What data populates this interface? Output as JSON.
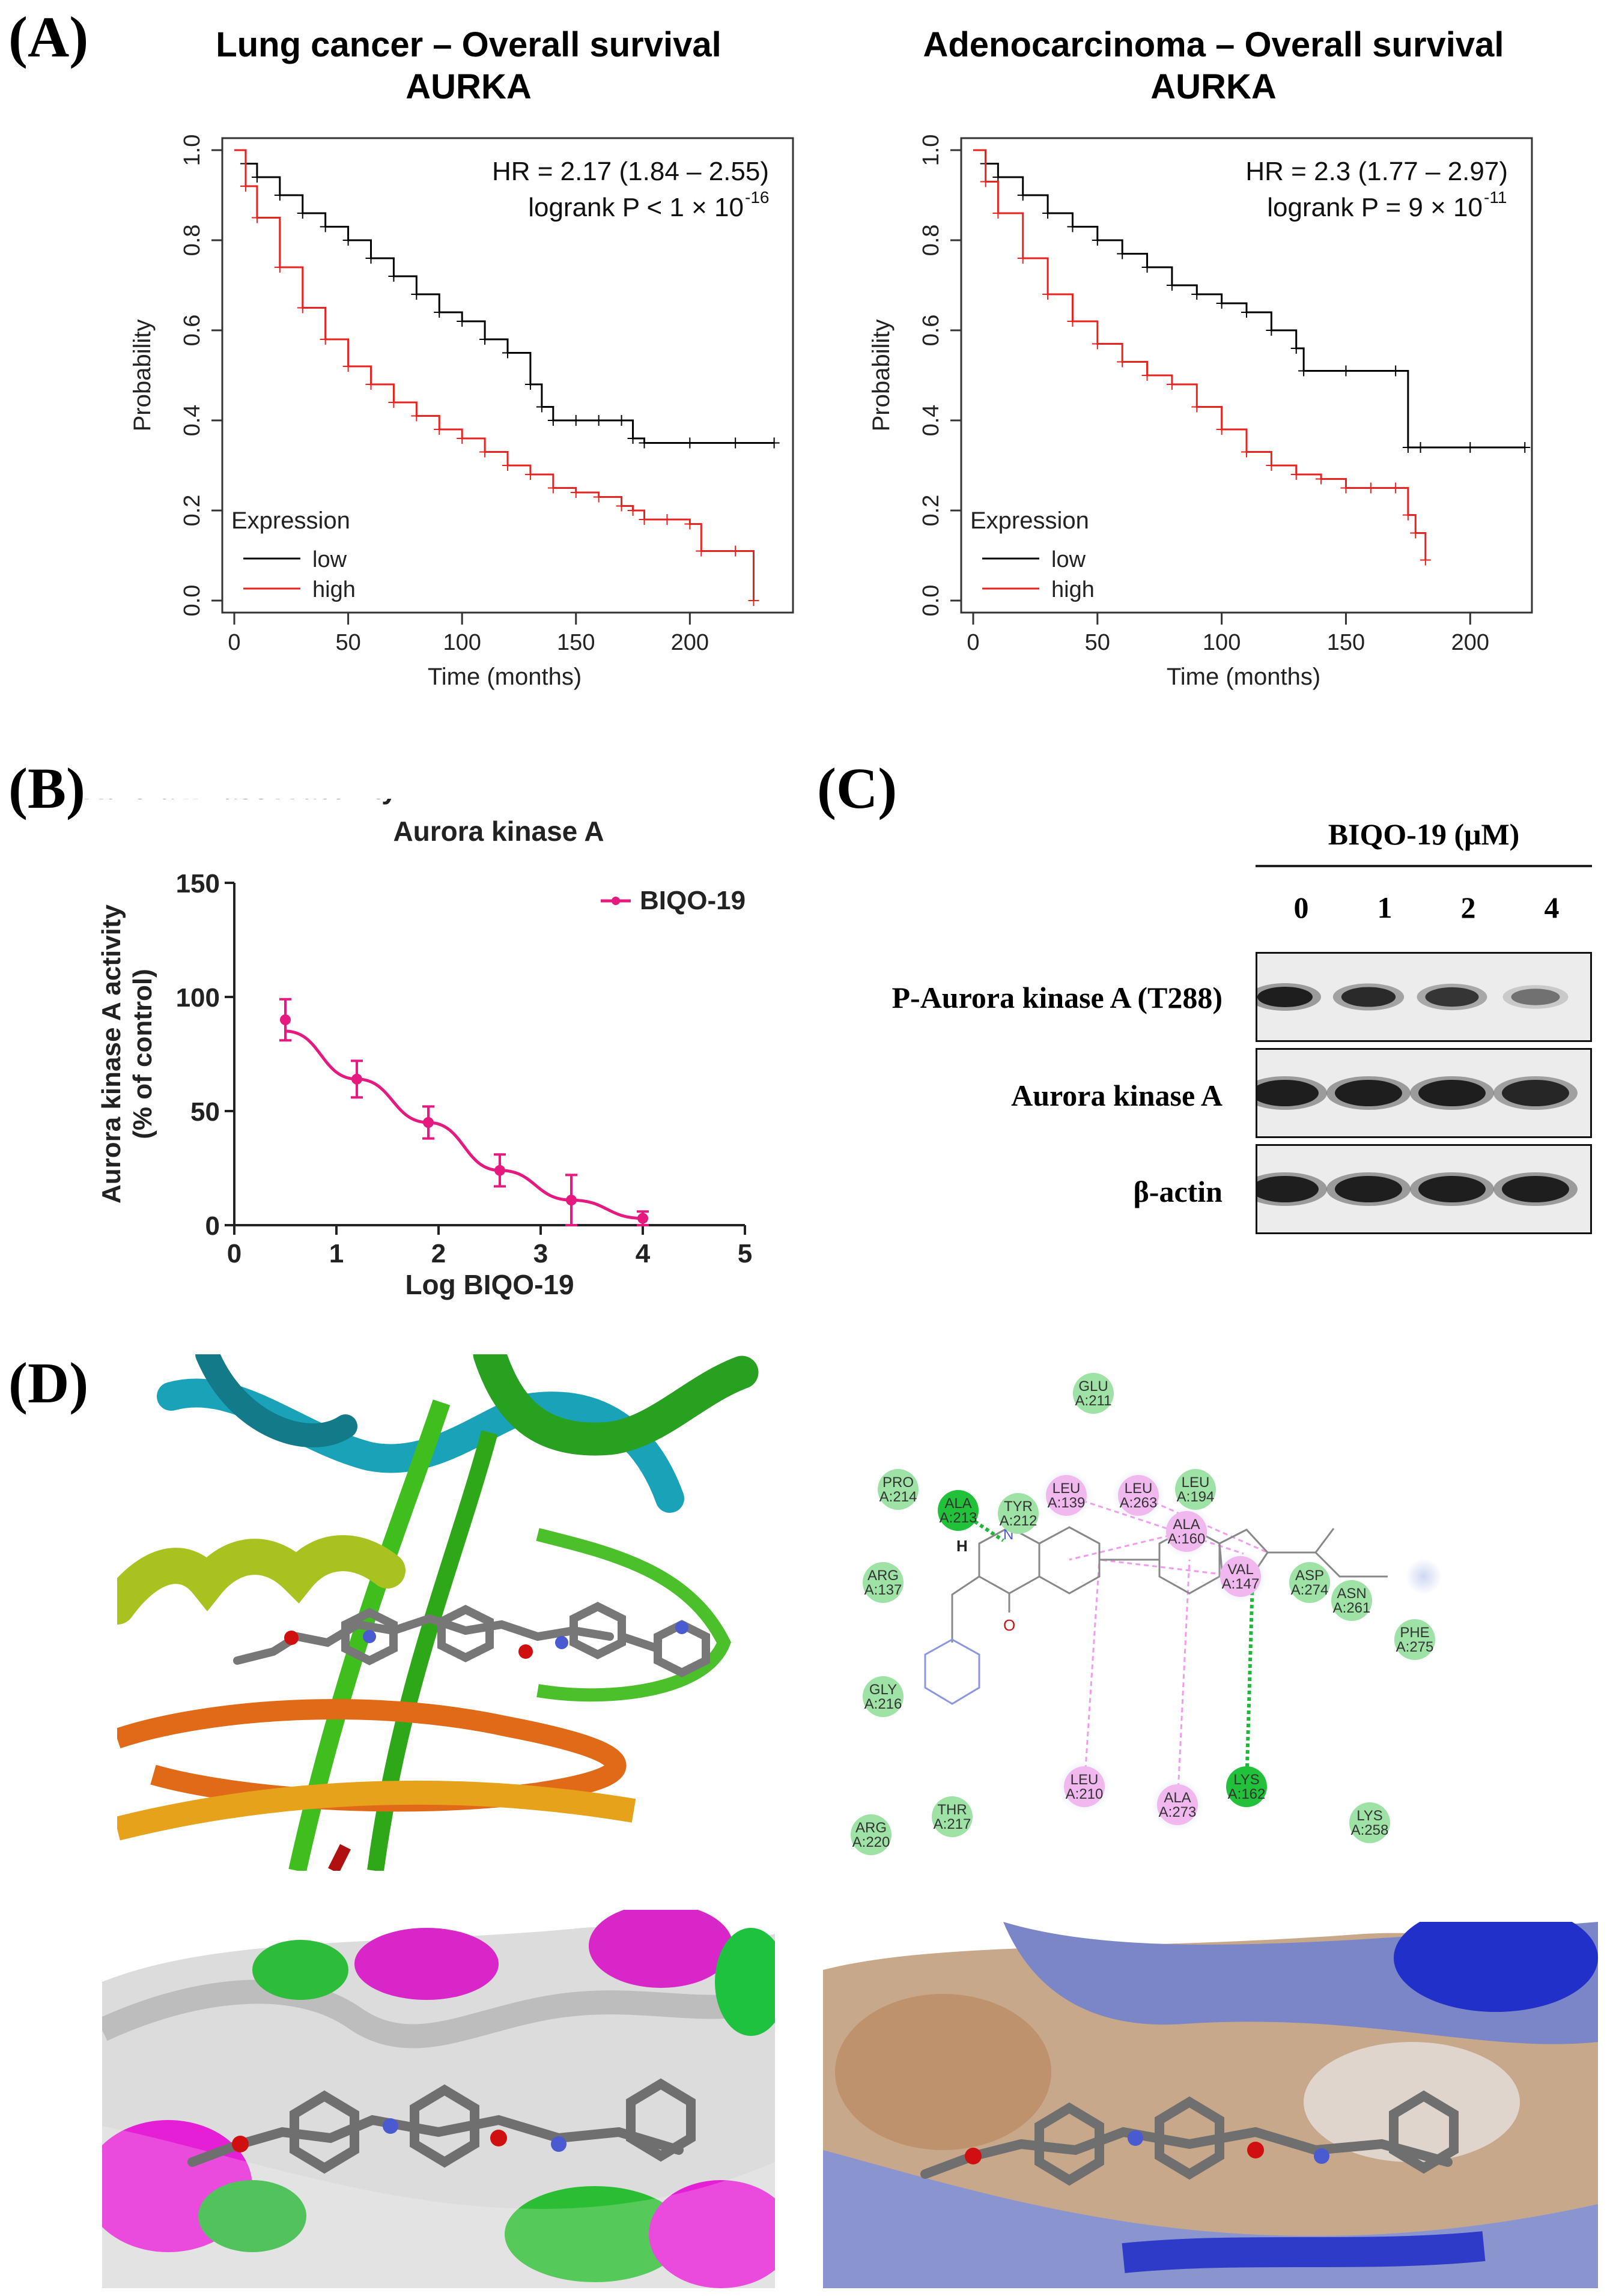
{
  "panels": {
    "A": "(A)",
    "B": "(B)",
    "C": "(C)",
    "D": "(D)"
  },
  "km_left": {
    "title_line1": "Lung cancer – Overall survival",
    "title_line2": "AURKA",
    "hr_text": "HR = 2.17 (1.84 – 2.55)",
    "logrank_text": "logrank P < 1 × 10",
    "logrank_exp": "-16",
    "ylabel": "Probability",
    "xlabel": "Time (months)",
    "legend_title": "Expression",
    "legend_low": "low",
    "legend_high": "high",
    "xticks": [
      "0",
      "50",
      "100",
      "150",
      "200"
    ],
    "yticks": [
      "0.0",
      "0.2",
      "0.4",
      "0.6",
      "0.8",
      "1.0"
    ]
  },
  "km_right": {
    "title_line1": "Adenocarcinoma – Overall survival",
    "title_line2": "AURKA",
    "hr_text": "HR = 2.3 (1.77 – 2.97)",
    "logrank_text": "logrank P = 9 × 10",
    "logrank_exp": "-11",
    "ylabel": "Probability",
    "xlabel": "Time (months)",
    "legend_title": "Expression",
    "legend_low": "low",
    "legend_high": "high",
    "xticks": [
      "0",
      "50",
      "100",
      "150",
      "200"
    ],
    "yticks": [
      "0.0",
      "0.2",
      "0.4",
      "0.6",
      "0.8",
      "1.0"
    ]
  },
  "panel_b": {
    "title": "Aurora kinase A",
    "ylabel_line1": "Aurora kinase A activity",
    "ylabel_line2": "(% of control)",
    "xlabel": "Log BIQO-19",
    "legend": "BIQO-19",
    "xticks": [
      "0",
      "1",
      "2",
      "3",
      "4",
      "5"
    ],
    "yticks": [
      "0",
      "50",
      "100",
      "150"
    ]
  },
  "panel_c": {
    "header": "BIQO-19 (μM)",
    "doses": [
      "0",
      "1",
      "2",
      "4"
    ],
    "rows": [
      "P-Aurora kinase A (T288)",
      "Aurora kinase A",
      "β-actin"
    ],
    "band_intensity": [
      [
        1.0,
        0.92,
        0.85,
        0.45
      ],
      [
        1.0,
        1.0,
        1.0,
        0.95
      ],
      [
        1.0,
        1.0,
        1.0,
        1.0
      ]
    ]
  },
  "panel_d": {
    "residues": [
      {
        "name": "GLU",
        "num": "A:211",
        "type": "vdw"
      },
      {
        "name": "PRO",
        "num": "A:214",
        "type": "vdw"
      },
      {
        "name": "ALA",
        "num": "A:213",
        "type": "hbond"
      },
      {
        "name": "TYR",
        "num": "A:212",
        "type": "vdw"
      },
      {
        "name": "LEU",
        "num": "A:139",
        "type": "pi"
      },
      {
        "name": "LEU",
        "num": "A:263",
        "type": "pi"
      },
      {
        "name": "LEU",
        "num": "A:194",
        "type": "vdw"
      },
      {
        "name": "ALA",
        "num": "A:160",
        "type": "pi"
      },
      {
        "name": "VAL",
        "num": "A:147",
        "type": "pi"
      },
      {
        "name": "ARG",
        "num": "A:137",
        "type": "vdw"
      },
      {
        "name": "ASP",
        "num": "A:274",
        "type": "vdw"
      },
      {
        "name": "ASN",
        "num": "A:261",
        "type": "vdw"
      },
      {
        "name": "PHE",
        "num": "A:275",
        "type": "vdw"
      },
      {
        "name": "GLY",
        "num": "A:216",
        "type": "vdw"
      },
      {
        "name": "LEU",
        "num": "A:210",
        "type": "pi"
      },
      {
        "name": "ALA",
        "num": "A:273",
        "type": "pi"
      },
      {
        "name": "LYS",
        "num": "A:162",
        "type": "hbond"
      },
      {
        "name": "LYS",
        "num": "A:258",
        "type": "vdw"
      },
      {
        "name": "THR",
        "num": "A:217",
        "type": "vdw"
      },
      {
        "name": "ARG",
        "num": "A:220",
        "type": "vdw"
      }
    ],
    "atom_h": "H",
    "atom_n": "N",
    "atom_o": "O"
  },
  "chart_data": [
    {
      "type": "line",
      "title": "Lung cancer – Overall survival AURKA",
      "xlabel": "Time (months)",
      "ylabel": "Probability",
      "xlim": [
        0,
        240
      ],
      "ylim": [
        0,
        1
      ],
      "legend_title": "Expression",
      "series": [
        {
          "name": "low",
          "color": "#000000",
          "x": [
            0,
            5,
            10,
            20,
            30,
            40,
            50,
            60,
            70,
            80,
            90,
            100,
            110,
            120,
            130,
            135,
            140,
            150,
            160,
            170,
            175,
            180,
            200,
            220,
            237
          ],
          "y": [
            1.0,
            0.97,
            0.94,
            0.9,
            0.86,
            0.83,
            0.8,
            0.76,
            0.72,
            0.68,
            0.64,
            0.62,
            0.58,
            0.55,
            0.48,
            0.43,
            0.4,
            0.4,
            0.4,
            0.4,
            0.36,
            0.35,
            0.35,
            0.35,
            0.35
          ]
        },
        {
          "name": "high",
          "color": "#e8231f",
          "x": [
            0,
            5,
            10,
            20,
            30,
            40,
            50,
            60,
            70,
            80,
            90,
            100,
            110,
            120,
            130,
            140,
            150,
            160,
            170,
            175,
            180,
            190,
            200,
            205,
            220,
            228
          ],
          "y": [
            1.0,
            0.92,
            0.85,
            0.74,
            0.65,
            0.58,
            0.52,
            0.48,
            0.44,
            0.41,
            0.38,
            0.36,
            0.33,
            0.3,
            0.28,
            0.25,
            0.24,
            0.23,
            0.21,
            0.2,
            0.18,
            0.18,
            0.17,
            0.11,
            0.11,
            0.0
          ]
        }
      ],
      "annotations": [
        "HR = 2.17 (1.84 – 2.55)",
        "logrank P < 1 × 10-16"
      ]
    },
    {
      "type": "line",
      "title": "Adenocarcinoma – Overall survival AURKA",
      "xlabel": "Time (months)",
      "ylabel": "Probability",
      "xlim": [
        0,
        220
      ],
      "ylim": [
        0,
        1
      ],
      "legend_title": "Expression",
      "series": [
        {
          "name": "low",
          "color": "#000000",
          "x": [
            0,
            5,
            10,
            20,
            30,
            40,
            50,
            60,
            70,
            80,
            90,
            100,
            110,
            120,
            130,
            133,
            150,
            170,
            175,
            180,
            200,
            222
          ],
          "y": [
            1.0,
            0.97,
            0.94,
            0.9,
            0.86,
            0.83,
            0.8,
            0.77,
            0.74,
            0.7,
            0.68,
            0.66,
            0.64,
            0.6,
            0.56,
            0.51,
            0.51,
            0.51,
            0.34,
            0.34,
            0.34,
            0.34
          ]
        },
        {
          "name": "high",
          "color": "#e8231f",
          "x": [
            0,
            5,
            10,
            20,
            30,
            40,
            50,
            60,
            70,
            80,
            90,
            100,
            110,
            120,
            130,
            140,
            150,
            160,
            170,
            175,
            178,
            182
          ],
          "y": [
            1.0,
            0.93,
            0.86,
            0.76,
            0.68,
            0.62,
            0.57,
            0.53,
            0.5,
            0.48,
            0.43,
            0.38,
            0.33,
            0.3,
            0.28,
            0.27,
            0.25,
            0.25,
            0.25,
            0.19,
            0.15,
            0.09
          ]
        }
      ],
      "annotations": [
        "HR = 2.3 (1.77 – 2.97)",
        "logrank P = 9 × 10-11"
      ]
    },
    {
      "type": "line",
      "title": "Aurora kinase A",
      "xlabel": "Log BIQO-19",
      "ylabel": "Aurora kinase A activity (% of control)",
      "xlim": [
        0,
        5
      ],
      "ylim": [
        0,
        150
      ],
      "series": [
        {
          "name": "BIQO-19",
          "color": "#e6197f",
          "x": [
            0.5,
            1.2,
            1.9,
            2.6,
            3.3,
            4.0
          ],
          "y": [
            90,
            64,
            45,
            24,
            11,
            3
          ],
          "error": [
            9,
            8,
            7,
            7,
            11,
            3
          ]
        }
      ]
    }
  ]
}
